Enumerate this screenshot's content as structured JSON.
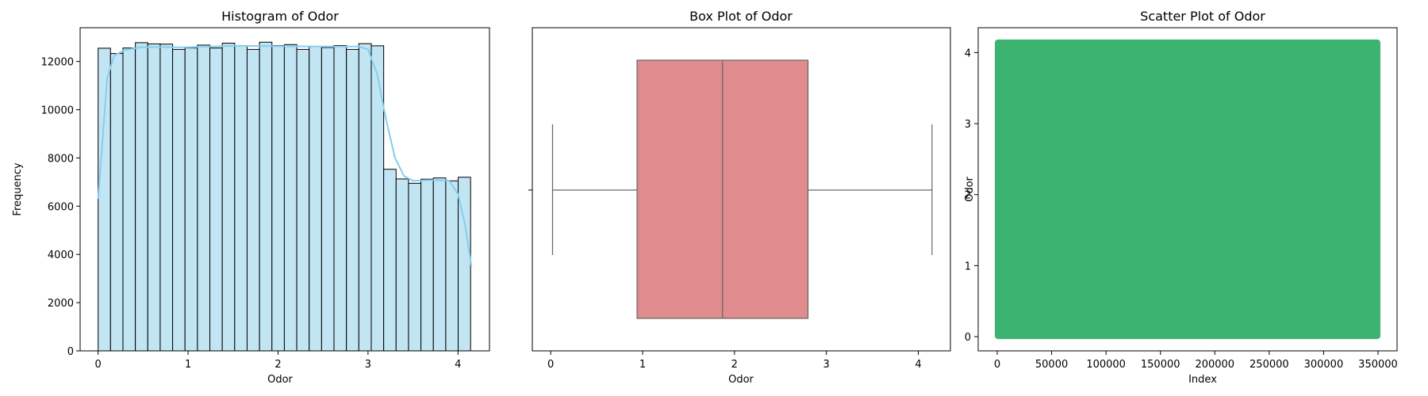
{
  "chart_data": [
    {
      "type": "bar",
      "title": "Histogram of Odor",
      "xlabel": "Odor",
      "ylabel": "Frequency",
      "xlim": [
        -0.2,
        4.35
      ],
      "ylim": [
        0,
        13400
      ],
      "xticks": [
        0,
        1,
        2,
        3,
        4
      ],
      "yticks": [
        0,
        2000,
        4000,
        6000,
        8000,
        10000,
        12000
      ],
      "bin_start": 0.0,
      "bin_width": 0.138,
      "values": [
        12550,
        12330,
        12560,
        12780,
        12730,
        12720,
        12500,
        12560,
        12680,
        12560,
        12760,
        12660,
        12500,
        12800,
        12660,
        12700,
        12500,
        12620,
        12580,
        12660,
        12500,
        12740,
        12650,
        7530,
        7130,
        6950,
        7120,
        7170,
        7050,
        7200
      ],
      "kde": [
        [
          0.0,
          6300
        ],
        [
          0.05,
          8800
        ],
        [
          0.1,
          11300
        ],
        [
          0.18,
          12250
        ],
        [
          0.3,
          12480
        ],
        [
          0.5,
          12600
        ],
        [
          1.0,
          12590
        ],
        [
          1.5,
          12650
        ],
        [
          2.0,
          12630
        ],
        [
          2.5,
          12620
        ],
        [
          2.9,
          12620
        ],
        [
          3.0,
          12500
        ],
        [
          3.1,
          11500
        ],
        [
          3.2,
          9600
        ],
        [
          3.3,
          8000
        ],
        [
          3.4,
          7250
        ],
        [
          3.5,
          7050
        ],
        [
          3.7,
          7080
        ],
        [
          3.9,
          7060
        ],
        [
          4.0,
          6500
        ],
        [
          4.08,
          5200
        ],
        [
          4.15,
          3500
        ]
      ],
      "bar_color": "#c1e5f3",
      "kde_color": "#87ceeb"
    },
    {
      "type": "box",
      "title": "Box Plot of Odor",
      "xlabel": "Odor",
      "xlim": [
        -0.2,
        4.35
      ],
      "xticks": [
        0,
        1,
        2,
        3,
        4
      ],
      "whisker_low": 0.02,
      "q1": 0.94,
      "median": 1.87,
      "q3": 2.8,
      "whisker_high": 4.15,
      "box_color": "#e08b8d"
    },
    {
      "type": "scatter",
      "title": "Scatter Plot of Odor",
      "xlabel": "Index",
      "ylabel": "Odor",
      "xlim": [
        -17500,
        367500
      ],
      "ylim": [
        -0.2,
        4.35
      ],
      "xticks": [
        0,
        50000,
        100000,
        150000,
        200000,
        250000,
        300000,
        350000
      ],
      "yticks": [
        0,
        1,
        2,
        3,
        4
      ],
      "x_range": [
        0,
        350000
      ],
      "y_range": [
        0,
        4.15
      ],
      "point_color": "#3cb371"
    }
  ]
}
